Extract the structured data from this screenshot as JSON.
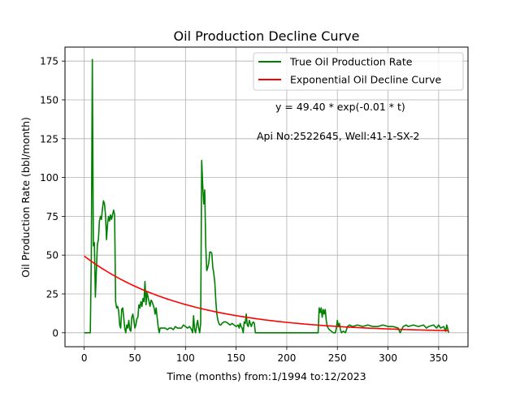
{
  "chart_data": {
    "type": "line",
    "title": "Oil Production Decline Curve",
    "xlabel": "Time (months) from:1/1994 to:12/2023",
    "ylabel": "Oil Production Rate (bbl/month)",
    "xlim": [
      -19,
      379
    ],
    "ylim": [
      -9,
      184
    ],
    "xticks": [
      0,
      50,
      100,
      150,
      200,
      250,
      300,
      350
    ],
    "yticks": [
      0,
      25,
      50,
      75,
      100,
      125,
      150,
      175
    ],
    "grid": true,
    "legend_position": "top-right",
    "annotations": [
      {
        "text": "y = 49.40 * exp(-0.01 * t)",
        "x": 187,
        "y": 145
      },
      {
        "text": "Api No:2522645, Well:41-1-SX-2",
        "x": 168,
        "y": 125
      }
    ],
    "series": [
      {
        "name": "True Oil Production Rate",
        "color": "#008000",
        "points": [
          [
            0,
            0
          ],
          [
            6,
            0
          ],
          [
            7,
            50
          ],
          [
            8,
            176
          ],
          [
            9,
            56
          ],
          [
            10,
            58
          ],
          [
            11,
            23
          ],
          [
            12,
            40
          ],
          [
            13,
            57
          ],
          [
            14,
            60
          ],
          [
            15,
            72
          ],
          [
            16,
            75
          ],
          [
            17,
            73
          ],
          [
            18,
            80
          ],
          [
            19,
            85
          ],
          [
            20,
            83
          ],
          [
            21,
            76
          ],
          [
            22,
            60
          ],
          [
            23,
            70
          ],
          [
            24,
            75
          ],
          [
            25,
            72
          ],
          [
            26,
            76
          ],
          [
            27,
            73
          ],
          [
            28,
            76
          ],
          [
            29,
            79
          ],
          [
            30,
            76
          ],
          [
            31,
            20
          ],
          [
            32,
            16
          ],
          [
            33,
            17
          ],
          [
            34,
            14
          ],
          [
            35,
            5
          ],
          [
            36,
            3
          ],
          [
            37,
            15
          ],
          [
            38,
            16
          ],
          [
            39,
            10
          ],
          [
            40,
            3
          ],
          [
            41,
            0
          ],
          [
            42,
            5
          ],
          [
            43,
            3
          ],
          [
            44,
            8
          ],
          [
            45,
            2
          ],
          [
            46,
            1
          ],
          [
            47,
            10
          ],
          [
            48,
            12
          ],
          [
            49,
            8
          ],
          [
            50,
            3
          ],
          [
            51,
            5
          ],
          [
            52,
            9
          ],
          [
            53,
            10
          ],
          [
            54,
            18
          ],
          [
            55,
            16
          ],
          [
            56,
            20
          ],
          [
            57,
            17
          ],
          [
            58,
            22
          ],
          [
            59,
            20
          ],
          [
            60,
            33
          ],
          [
            61,
            18
          ],
          [
            62,
            26
          ],
          [
            63,
            23
          ],
          [
            64,
            20
          ],
          [
            65,
            17
          ],
          [
            66,
            21
          ],
          [
            67,
            20
          ],
          [
            68,
            18
          ],
          [
            69,
            16
          ],
          [
            70,
            12
          ],
          [
            71,
            16
          ],
          [
            72,
            10
          ],
          [
            73,
            4
          ],
          [
            74,
            0
          ],
          [
            75,
            3
          ],
          [
            76,
            3
          ],
          [
            78,
            3
          ],
          [
            80,
            3
          ],
          [
            82,
            2
          ],
          [
            84,
            3
          ],
          [
            86,
            3
          ],
          [
            88,
            2
          ],
          [
            90,
            4
          ],
          [
            92,
            3
          ],
          [
            94,
            3
          ],
          [
            96,
            3
          ],
          [
            98,
            5
          ],
          [
            100,
            4
          ],
          [
            102,
            3
          ],
          [
            104,
            4
          ],
          [
            106,
            2
          ],
          [
            107,
            0
          ],
          [
            108,
            11
          ],
          [
            109,
            2
          ],
          [
            110,
            0
          ],
          [
            111,
            5
          ],
          [
            112,
            8
          ],
          [
            113,
            3
          ],
          [
            114,
            0
          ],
          [
            115,
            6
          ],
          [
            116,
            111
          ],
          [
            117,
            95
          ],
          [
            118,
            83
          ],
          [
            119,
            92
          ],
          [
            120,
            56
          ],
          [
            121,
            40
          ],
          [
            122,
            42
          ],
          [
            123,
            45
          ],
          [
            124,
            52
          ],
          [
            125,
            52
          ],
          [
            126,
            51
          ],
          [
            127,
            42
          ],
          [
            128,
            38
          ],
          [
            129,
            32
          ],
          [
            130,
            20
          ],
          [
            131,
            12
          ],
          [
            132,
            8
          ],
          [
            133,
            6
          ],
          [
            134,
            5
          ],
          [
            135,
            5
          ],
          [
            136,
            6
          ],
          [
            138,
            7
          ],
          [
            140,
            7
          ],
          [
            142,
            6
          ],
          [
            144,
            5
          ],
          [
            146,
            6
          ],
          [
            148,
            5
          ],
          [
            150,
            4
          ],
          [
            152,
            5
          ],
          [
            153,
            3
          ],
          [
            154,
            6
          ],
          [
            155,
            4
          ],
          [
            156,
            3
          ],
          [
            157,
            0
          ],
          [
            158,
            7
          ],
          [
            159,
            6
          ],
          [
            160,
            12
          ],
          [
            161,
            5
          ],
          [
            162,
            4
          ],
          [
            163,
            8
          ],
          [
            164,
            6
          ],
          [
            165,
            4
          ],
          [
            166,
            6
          ],
          [
            167,
            7
          ],
          [
            168,
            6
          ],
          [
            169,
            0
          ],
          [
            180,
            0
          ],
          [
            200,
            0
          ],
          [
            220,
            0
          ],
          [
            231,
            0
          ],
          [
            232,
            16
          ],
          [
            233,
            13
          ],
          [
            234,
            16
          ],
          [
            235,
            10
          ],
          [
            236,
            15
          ],
          [
            237,
            12
          ],
          [
            238,
            15
          ],
          [
            239,
            8
          ],
          [
            240,
            4
          ],
          [
            242,
            2
          ],
          [
            244,
            1
          ],
          [
            246,
            0
          ],
          [
            248,
            0
          ],
          [
            249,
            3
          ],
          [
            250,
            8
          ],
          [
            251,
            4
          ],
          [
            252,
            6
          ],
          [
            253,
            2
          ],
          [
            254,
            0
          ],
          [
            256,
            1
          ],
          [
            258,
            0
          ],
          [
            260,
            4
          ],
          [
            262,
            5
          ],
          [
            265,
            4
          ],
          [
            270,
            5
          ],
          [
            275,
            4
          ],
          [
            280,
            5
          ],
          [
            285,
            4
          ],
          [
            290,
            4
          ],
          [
            295,
            5
          ],
          [
            300,
            4
          ],
          [
            305,
            4
          ],
          [
            310,
            3
          ],
          [
            312,
            0
          ],
          [
            315,
            4
          ],
          [
            318,
            5
          ],
          [
            320,
            4
          ],
          [
            325,
            5
          ],
          [
            330,
            4
          ],
          [
            335,
            5
          ],
          [
            338,
            3
          ],
          [
            340,
            4
          ],
          [
            345,
            5
          ],
          [
            348,
            3
          ],
          [
            350,
            5
          ],
          [
            352,
            3
          ],
          [
            355,
            4
          ],
          [
            357,
            1
          ],
          [
            358,
            5
          ],
          [
            360,
            0
          ]
        ]
      },
      {
        "name": "Exponential Oil Decline Curve",
        "color": "#ff0000",
        "function": {
          "a": 49.4,
          "b": -0.01,
          "t_start": 0,
          "t_end": 360
        }
      }
    ]
  }
}
